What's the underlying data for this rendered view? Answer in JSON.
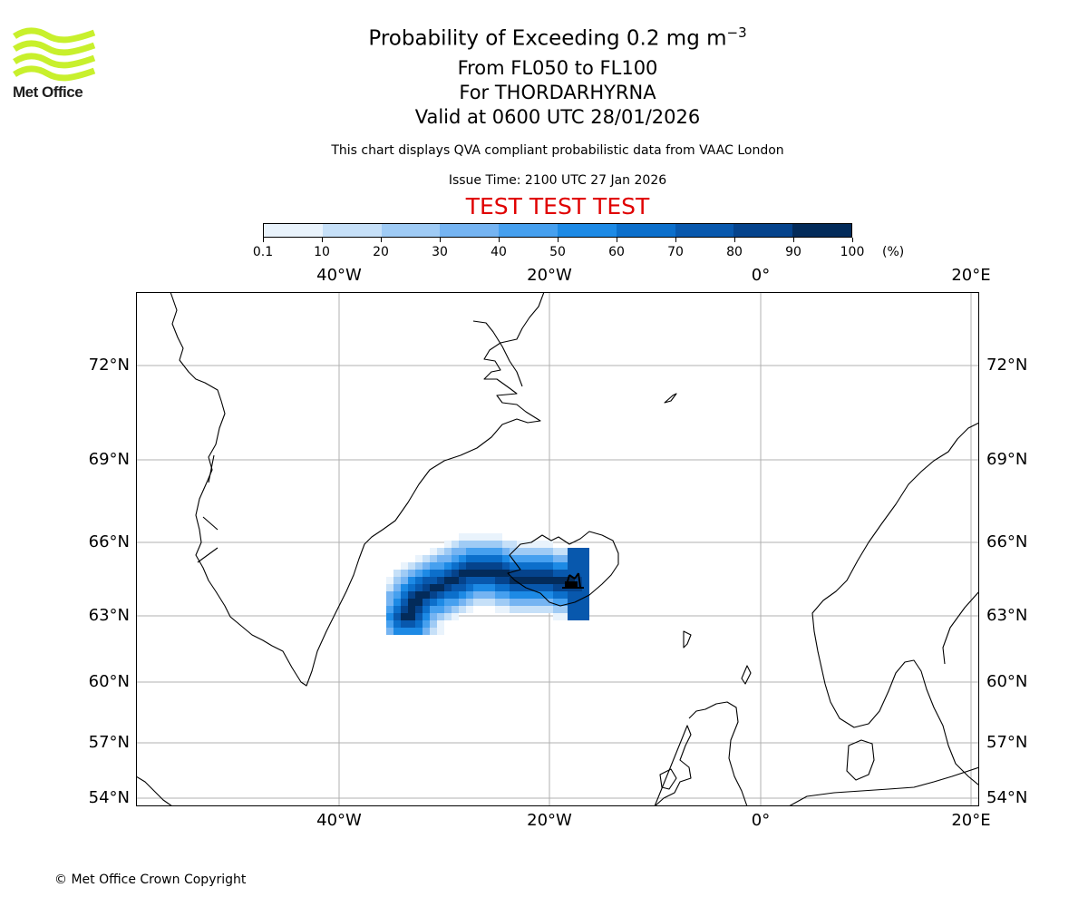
{
  "logo": {
    "text": "Met Office",
    "color": "#c8f02c"
  },
  "title": {
    "main": "Probability of Exceeding 0.2 mg m",
    "exponent": "−3"
  },
  "subtitle": {
    "levels": "From FL050 to FL100",
    "volcano": "For THORDARHYRNA",
    "valid": "Valid at 0600 UTC 28/01/2026"
  },
  "note": "This chart displays QVA compliant probabilistic data from VAAC London",
  "issue_time": "Issue Time: 2100 UTC 27 Jan 2026",
  "test_banner": "TEST TEST TEST",
  "colorbar": {
    "ticks": [
      "0.1",
      "10",
      "20",
      "30",
      "40",
      "50",
      "60",
      "70",
      "80",
      "90",
      "100"
    ],
    "unit": "(%)",
    "colors": [
      "#e9f3fc",
      "#c6e0f8",
      "#9fcbf5",
      "#75b4f2",
      "#46a0ef",
      "#1d8ae5",
      "#0c6fcb",
      "#0858ad",
      "#05438c",
      "#032b5a"
    ]
  },
  "axes": {
    "top_lon": [
      "40°W",
      "20°W",
      "0°",
      "20°E"
    ],
    "bottom_lon": [
      "40°W",
      "20°W",
      "0°",
      "20°E"
    ],
    "left_lat": [
      "72°N",
      "69°N",
      "66°N",
      "63°N",
      "60°N",
      "57°N",
      "54°N"
    ],
    "right_lat": [
      "72°N",
      "69°N",
      "66°N",
      "63°N",
      "60°N",
      "57°N",
      "54°N"
    ]
  },
  "map": {
    "gridline_color": "#b0b0b0",
    "coast_color": "#000000",
    "volcano_marker": "volcano-icon",
    "plume_probability_levels": [
      5,
      15,
      25,
      35,
      45,
      55,
      65,
      75,
      85,
      95
    ]
  },
  "copyright": "© Met Office Crown Copyright"
}
